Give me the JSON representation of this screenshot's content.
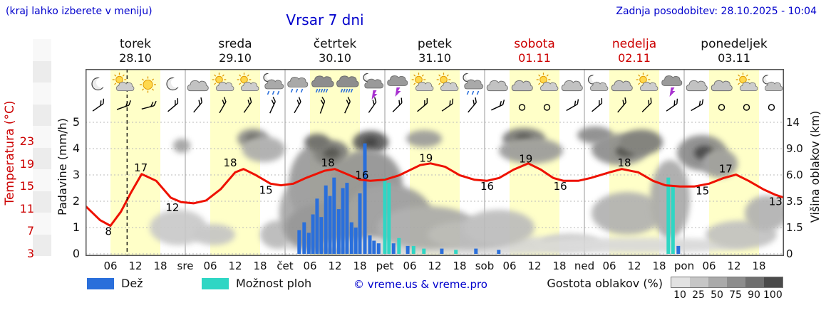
{
  "header": {
    "menu_hint": "(kraj lahko izberete v meniju)",
    "title": "Vrsar 7 dni",
    "last_update": "Zadnja posodobitev: 28.10.2025 - 10:04"
  },
  "colors": {
    "text_blue": "#0000cc",
    "red": "#cc0000",
    "temp_line": "#ee1100",
    "rain": "#2a6fdb",
    "shower": "#2fd6c4",
    "day_band": "#ffffc8",
    "bolt": "#a832d0"
  },
  "days": [
    {
      "name": "torek",
      "date": "28.10",
      "weekend": false
    },
    {
      "name": "sreda",
      "date": "29.10",
      "weekend": false
    },
    {
      "name": "četrtek",
      "date": "30.10",
      "weekend": false
    },
    {
      "name": "petek",
      "date": "31.10",
      "weekend": false
    },
    {
      "name": "sobota",
      "date": "01.11",
      "weekend": true
    },
    {
      "name": "nedelja",
      "date": "02.11",
      "weekend": true
    },
    {
      "name": "ponedeljek",
      "date": "03.11",
      "weekend": false
    }
  ],
  "axes": {
    "temp_label": "Temperatura (°C)",
    "temp_ticks": [
      "23",
      "19",
      "15",
      "11",
      "7",
      "3"
    ],
    "precip_label": "Padavine (mm/h)",
    "precip_ticks": [
      "5",
      "4",
      "3",
      "2",
      "1",
      "0"
    ],
    "cloud_label": "Višina oblakov (km)",
    "cloud_ticks": [
      "14",
      "9.0",
      "6.0",
      "3.5",
      "1.5",
      "0"
    ]
  },
  "xaxis": {
    "times": [
      "06",
      "12",
      "18"
    ],
    "day_abbrevs": [
      "sre",
      "čet",
      "pet",
      "sob",
      "ned",
      "pon"
    ]
  },
  "legend": {
    "rain": "Dež",
    "showers": "Možnost ploh",
    "copyright": "© vreme.us & vreme.pro",
    "cloud_density": "Gostota oblakov (%)",
    "density_ticks": [
      "10",
      "25",
      "50",
      "75",
      "90",
      "100"
    ],
    "density_shades": [
      "#e2e2e2",
      "#c6c6c6",
      "#aaaaaa",
      "#8d8d8d",
      "#6f6f6f",
      "#4a4a4a"
    ]
  },
  "chart_data": {
    "type": "meteogram",
    "hours_total": 168,
    "now_hour": 10,
    "temperature": {
      "unit": "°C",
      "points": [
        [
          0,
          11.5
        ],
        [
          3.5,
          9
        ],
        [
          6,
          8
        ],
        [
          8.5,
          10.5
        ],
        [
          11,
          14
        ],
        [
          13.5,
          17.2
        ],
        [
          17,
          16
        ],
        [
          20.5,
          13
        ],
        [
          23,
          12.2
        ],
        [
          26,
          12
        ],
        [
          29,
          12.5
        ],
        [
          32.5,
          14.5
        ],
        [
          36,
          17.5
        ],
        [
          38,
          18.1
        ],
        [
          41,
          17
        ],
        [
          44.5,
          15.5
        ],
        [
          47,
          15.2
        ],
        [
          50,
          15.5
        ],
        [
          53,
          16.5
        ],
        [
          57.5,
          17.8
        ],
        [
          60,
          18.1
        ],
        [
          63.5,
          17
        ],
        [
          66,
          16.2
        ],
        [
          68.5,
          16
        ],
        [
          72,
          16.2
        ],
        [
          75.5,
          17
        ],
        [
          80.5,
          18.8
        ],
        [
          83,
          19.1
        ],
        [
          86.5,
          18.5
        ],
        [
          90,
          17
        ],
        [
          93.5,
          16.2
        ],
        [
          96.5,
          16
        ],
        [
          99.5,
          16.5
        ],
        [
          103,
          18
        ],
        [
          106.5,
          19.1
        ],
        [
          109.5,
          18
        ],
        [
          112.5,
          16.5
        ],
        [
          115,
          16
        ],
        [
          118.5,
          16
        ],
        [
          121.5,
          16.5
        ],
        [
          126,
          17.5
        ],
        [
          129,
          18.1
        ],
        [
          133,
          17.5
        ],
        [
          136.5,
          16
        ],
        [
          139.5,
          15.2
        ],
        [
          143,
          15
        ],
        [
          146.5,
          15
        ],
        [
          150,
          15.5
        ],
        [
          153.5,
          16.5
        ],
        [
          156.5,
          17.1
        ],
        [
          159.5,
          16
        ],
        [
          163,
          14.5
        ],
        [
          166,
          13.5
        ],
        [
          168,
          13
        ]
      ]
    },
    "temp_labels": [
      {
        "h": 5.5,
        "y": 7.0,
        "text": "8"
      },
      {
        "h": 13.3,
        "y": 18.3,
        "text": "17"
      },
      {
        "h": 20.9,
        "y": 11.2,
        "text": "12"
      },
      {
        "h": 34.8,
        "y": 19.2,
        "text": "18"
      },
      {
        "h": 43.4,
        "y": 14.3,
        "text": "15"
      },
      {
        "h": 58.3,
        "y": 19.2,
        "text": "18"
      },
      {
        "h": 66.5,
        "y": 17.0,
        "text": "16"
      },
      {
        "h": 81.9,
        "y": 20.0,
        "text": "19"
      },
      {
        "h": 96.6,
        "y": 15.0,
        "text": "16"
      },
      {
        "h": 105.9,
        "y": 19.9,
        "text": "19"
      },
      {
        "h": 114.2,
        "y": 15.0,
        "text": "16"
      },
      {
        "h": 129.6,
        "y": 19.2,
        "text": "18"
      },
      {
        "h": 148.4,
        "y": 14.2,
        "text": "15"
      },
      {
        "h": 154.0,
        "y": 18.1,
        "text": "17"
      },
      {
        "h": 166.0,
        "y": 12.3,
        "text": "13"
      }
    ],
    "precip_bars": [
      {
        "h": 51.4,
        "v": 0.9,
        "k": "rain"
      },
      {
        "h": 52.6,
        "v": 1.2,
        "k": "rain"
      },
      {
        "h": 53.7,
        "v": 0.8,
        "k": "rain"
      },
      {
        "h": 54.7,
        "v": 1.5,
        "k": "rain"
      },
      {
        "h": 55.7,
        "v": 2.1,
        "k": "rain"
      },
      {
        "h": 56.7,
        "v": 1.4,
        "k": "rain"
      },
      {
        "h": 57.8,
        "v": 2.6,
        "k": "rain"
      },
      {
        "h": 58.8,
        "v": 2.2,
        "k": "rain"
      },
      {
        "h": 59.8,
        "v": 2.9,
        "k": "rain"
      },
      {
        "h": 60.9,
        "v": 1.7,
        "k": "rain"
      },
      {
        "h": 61.9,
        "v": 2.5,
        "k": "rain"
      },
      {
        "h": 62.9,
        "v": 2.7,
        "k": "rain"
      },
      {
        "h": 64.0,
        "v": 1.2,
        "k": "rain"
      },
      {
        "h": 65.0,
        "v": 1.0,
        "k": "rain"
      },
      {
        "h": 66.0,
        "v": 2.3,
        "k": "rain"
      },
      {
        "h": 67.2,
        "v": 4.2,
        "k": "rain"
      },
      {
        "h": 68.4,
        "v": 0.7,
        "k": "rain"
      },
      {
        "h": 69.4,
        "v": 0.5,
        "k": "rain"
      },
      {
        "h": 70.5,
        "v": 0.4,
        "k": "rain"
      },
      {
        "h": 72.0,
        "v": 2.9,
        "k": "shower"
      },
      {
        "h": 73.0,
        "v": 2.7,
        "k": "shower"
      },
      {
        "h": 74.1,
        "v": 0.4,
        "k": "rain"
      },
      {
        "h": 75.4,
        "v": 0.6,
        "k": "shower"
      },
      {
        "h": 77.5,
        "v": 0.3,
        "k": "rain"
      },
      {
        "h": 78.9,
        "v": 0.3,
        "k": "shower"
      },
      {
        "h": 81.4,
        "v": 0.2,
        "k": "shower"
      },
      {
        "h": 85.7,
        "v": 0.2,
        "k": "rain"
      },
      {
        "h": 89.1,
        "v": 0.15,
        "k": "shower"
      },
      {
        "h": 93.9,
        "v": 0.2,
        "k": "rain"
      },
      {
        "h": 99.4,
        "v": 0.15,
        "k": "rain"
      },
      {
        "h": 140.2,
        "v": 2.9,
        "k": "shower"
      },
      {
        "h": 141.3,
        "v": 2.6,
        "k": "shower"
      },
      {
        "h": 142.6,
        "v": 0.3,
        "k": "rain"
      }
    ],
    "weather_icons": [
      "moon",
      "partly",
      "sun",
      "moon",
      "cloud",
      "partly",
      "partly",
      "rain-moon",
      "rain",
      "heavy-rain",
      "heavy-rain",
      "thunder-moon",
      "thunder",
      "partly",
      "partly",
      "rain-moon",
      "cloud",
      "cloud",
      "partly",
      "cloud",
      "moon-cloud",
      "cloud",
      "partly",
      "thunder",
      "cloud",
      "cloud",
      "partly",
      "moon-cloud"
    ],
    "wind": [
      {
        "d": -35
      },
      {
        "d": -20
      },
      {
        "d": -15
      },
      {
        "d": -40
      },
      {
        "d": -50
      },
      {
        "d": -60
      },
      {
        "d": -55
      },
      {
        "d": -65
      },
      {
        "d": -60
      },
      {
        "d": -70
      },
      {
        "d": -65
      },
      {
        "d": -55
      },
      {
        "d": -45
      },
      {
        "d": -40
      },
      {
        "d": -35
      },
      {
        "d": -50
      },
      {
        "d": -25
      },
      {
        "calm": true
      },
      {
        "calm": true
      },
      {
        "d": -30
      },
      {
        "d": -40
      },
      {
        "d": -50
      },
      {
        "d": -45
      },
      {
        "d": -35
      },
      {
        "d": -30
      },
      {
        "calm": true
      },
      {
        "calm": true
      },
      {
        "calm": true
      }
    ],
    "clouds": [
      [
        130,
        223,
        40,
        25,
        "#c8c8c8"
      ],
      [
        135,
        108,
        12,
        10,
        "#a0a0a0"
      ],
      [
        180,
        233,
        30,
        15,
        "#c4c4c4"
      ],
      [
        235,
        98,
        22,
        14,
        "#8a8a8a"
      ],
      [
        235,
        98,
        10,
        6,
        "#555555"
      ],
      [
        250,
        113,
        30,
        18,
        "#aaaaaa"
      ],
      [
        270,
        233,
        25,
        20,
        "#b8b8b8"
      ],
      [
        380,
        248,
        100,
        13,
        "#cfcfcf"
      ],
      [
        300,
        203,
        28,
        45,
        "#a5a5a5"
      ],
      [
        330,
        163,
        45,
        60,
        "#979797"
      ],
      [
        340,
        223,
        60,
        35,
        "#8f8f8f"
      ],
      [
        345,
        118,
        25,
        18,
        "#787878"
      ],
      [
        345,
        118,
        12,
        8,
        "#4a4a4a"
      ],
      [
        325,
        103,
        18,
        12,
        "#666666"
      ],
      [
        400,
        103,
        25,
        16,
        "#585858"
      ],
      [
        400,
        103,
        10,
        7,
        "#333333"
      ],
      [
        395,
        163,
        50,
        50,
        "#909090"
      ],
      [
        425,
        203,
        60,
        40,
        "#9a9a9a"
      ],
      [
        530,
        248,
        200,
        14,
        "#d5d5d5"
      ],
      [
        480,
        223,
        70,
        30,
        "#a8a8a8"
      ],
      [
        475,
        98,
        25,
        12,
        "#999999"
      ],
      [
        540,
        233,
        60,
        20,
        "#b5b5b5"
      ],
      [
        580,
        223,
        50,
        25,
        "#bbbbbb"
      ],
      [
        615,
        98,
        30,
        15,
        "#777777"
      ],
      [
        615,
        98,
        12,
        6,
        "#3a3a3a"
      ],
      [
        625,
        115,
        45,
        18,
        "#999999"
      ],
      [
        680,
        243,
        40,
        12,
        "#cccccc"
      ],
      [
        715,
        93,
        25,
        12,
        "#888888"
      ],
      [
        780,
        248,
        150,
        11,
        "#d8d8d8"
      ],
      [
        750,
        113,
        40,
        22,
        "#8a8a8a"
      ],
      [
        758,
        116,
        14,
        8,
        "#444444"
      ],
      [
        780,
        103,
        30,
        18,
        "#777777"
      ],
      [
        760,
        203,
        50,
        30,
        "#b0b0b0"
      ],
      [
        820,
        183,
        28,
        55,
        "#a8a8a8"
      ],
      [
        865,
        118,
        35,
        25,
        "#888888"
      ],
      [
        868,
        118,
        14,
        10,
        "#3a3a3a"
      ],
      [
        890,
        133,
        25,
        20,
        "#999999"
      ],
      [
        920,
        233,
        50,
        20,
        "#c0c0c0"
      ],
      [
        955,
        203,
        30,
        25,
        "#b0b0b0"
      ]
    ]
  }
}
